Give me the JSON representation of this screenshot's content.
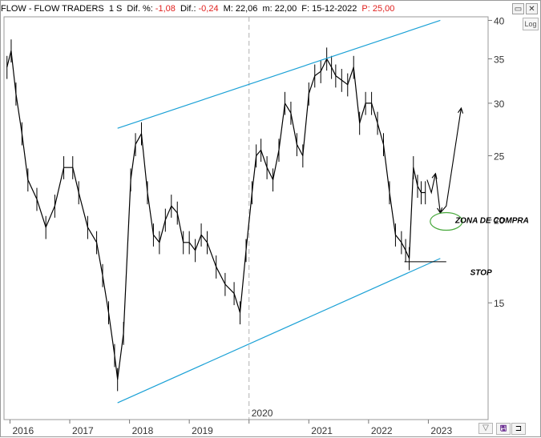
{
  "header": {
    "symbol": "FLOW - FLOW TRADERS",
    "period": "1 S",
    "dif_pct_label": "Dif. %:",
    "dif_pct_value": "-1,08",
    "dif_label": "Dif.:",
    "dif_value": "-0,24",
    "max_label": "M:",
    "max_value": "22,06",
    "min_label": "m:",
    "min_value": "22,00",
    "date_label": "F:",
    "date_value": "15-12-2022",
    "price_label": "P:",
    "price_value": "25,00"
  },
  "controls": {
    "log_label": "Log",
    "minimize_glyph": "▭",
    "close_glyph": "✕",
    "scroll_glyph": "▽",
    "save_glyph": "🖫",
    "expand_glyph": "⊐"
  },
  "colors": {
    "price_bars": "#000000",
    "channel": "#1ba1d6",
    "zone_ellipse": "#46a83a",
    "stop_line": "#000000",
    "grid": "#cfcfcf"
  },
  "chart_data": {
    "type": "line",
    "title": "FLOW - FLOW TRADERS",
    "xlabel": "",
    "ylabel": "",
    "x_tick_labels": [
      "2016",
      "2017",
      "2018",
      "2019",
      "2020",
      "2021",
      "2022",
      "2023"
    ],
    "y_ticks": [
      15,
      20,
      25,
      30,
      35,
      40
    ],
    "ylim": [
      10,
      40.5
    ],
    "xlim": [
      2015.9,
      2024.0
    ],
    "y_scale": "log",
    "grid": "vertical only",
    "highlighted_x_label": "2020",
    "series": [
      {
        "x": [
          2015.95,
          2016.02,
          2016.1,
          2016.2,
          2016.3,
          2016.45,
          2016.6,
          2016.75,
          2016.9,
          2017.05,
          2017.15,
          2017.3,
          2017.45,
          2017.55,
          2017.65,
          2017.75,
          2017.8,
          2017.9,
          2018.02,
          2018.1,
          2018.2,
          2018.3,
          2018.4,
          2018.5,
          2018.6,
          2018.7,
          2018.8,
          2018.9,
          2019.0,
          2019.1,
          2019.2,
          2019.3,
          2019.45,
          2019.6,
          2019.75,
          2019.85,
          2019.95,
          2020.05,
          2020.12,
          2020.2,
          2020.3,
          2020.4,
          2020.5,
          2020.6,
          2020.7,
          2020.8,
          2020.9,
          2021.0,
          2021.1,
          2021.2,
          2021.3,
          2021.38,
          2021.45,
          2021.55,
          2021.65,
          2021.75,
          2021.85,
          2021.95,
          2022.05,
          2022.15,
          2022.25,
          2022.35,
          2022.45,
          2022.55,
          2022.62,
          2022.68,
          2022.75,
          2022.82,
          2022.88,
          2022.95
        ],
        "values": [
          34.0,
          36.0,
          31.0,
          27.0,
          23.0,
          21.5,
          19.5,
          21.0,
          24.0,
          24.0,
          22.0,
          19.5,
          18.5,
          16.5,
          14.5,
          12.5,
          11.5,
          13.5,
          23.0,
          26.0,
          27.0,
          22.0,
          19.0,
          18.5,
          20.0,
          21.0,
          20.5,
          18.5,
          18.5,
          18.0,
          19.0,
          18.5,
          17.0,
          16.0,
          15.5,
          14.5,
          18.0,
          22.0,
          25.0,
          25.5,
          24.0,
          23.0,
          25.5,
          30.0,
          29.0,
          26.0,
          25.0,
          31.0,
          33.0,
          33.5,
          35.0,
          34.0,
          33.0,
          32.5,
          32.0,
          34.0,
          28.0,
          30.0,
          30.0,
          28.0,
          26.0,
          22.0,
          19.0,
          18.5,
          18.0,
          17.5,
          24.0,
          22.5,
          22.0,
          22.0
        ]
      }
    ],
    "projection": {
      "x": [
        2022.98,
        2023.05,
        2023.12,
        2023.2,
        2023.3,
        2023.55
      ],
      "values": [
        23.0,
        22.0,
        23.5,
        20.5,
        21.0,
        29.5
      ]
    },
    "channel_upper": {
      "x": [
        2017.8,
        2023.2
      ],
      "values": [
        27.5,
        40.0
      ]
    },
    "channel_lower": {
      "x": [
        2017.8,
        2023.2
      ],
      "values": [
        10.6,
        17.5
      ]
    },
    "annotations": [
      {
        "text": "ZONA DE COMPRA",
        "x": 2023.45,
        "y": 20.0
      },
      {
        "text": "STOP",
        "x": 2023.7,
        "y": 16.7
      }
    ],
    "stop_level": {
      "x": [
        2022.6,
        2023.3
      ],
      "value": 17.3
    },
    "buy_zone": {
      "x": 2023.3,
      "y": 19.9
    }
  }
}
